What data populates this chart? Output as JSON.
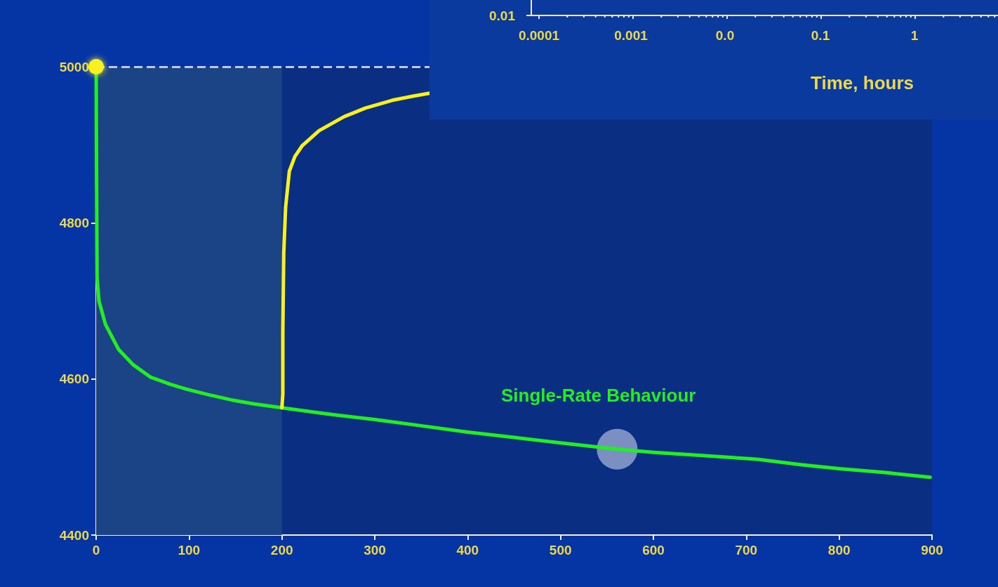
{
  "chart_data": [
    {
      "type": "line",
      "marker": "none",
      "xlim": [
        0,
        900
      ],
      "xticks": [
        0,
        100,
        200,
        300,
        400,
        500,
        600,
        700,
        800,
        900
      ],
      "ylim": [
        4400,
        5000
      ],
      "yticks": [
        4400,
        4600,
        4800,
        5000
      ],
      "series": [
        {
          "color": "#22ee22",
          "x": [
            0,
            0.5,
            1,
            3,
            10,
            24,
            40,
            59,
            80,
            97,
            120,
            146,
            170,
            200,
            250,
            300,
            350,
            399,
            450,
            500,
            561,
            600,
            650,
            713,
            760,
            800,
            850,
            898
          ],
          "values": [
            5000,
            4850,
            4730,
            4700,
            4670,
            4638,
            4618,
            4602,
            4593,
            4587,
            4580,
            4573,
            4568,
            4563,
            4555,
            4548,
            4540,
            4532,
            4525,
            4518,
            4510,
            4506,
            4502,
            4497,
            4490,
            4485,
            4480,
            4474
          ]
        },
        {
          "color": "#f8f020",
          "x": [
            200,
            201,
            201,
            202,
            204,
            208,
            214,
            222,
            240,
            267,
            290,
            319,
            340,
            359
          ],
          "values": [
            4563,
            4580,
            4659,
            4762,
            4820,
            4866,
            4885,
            4899,
            4918,
            4936,
            4947,
            4957,
            4962,
            4966
          ]
        },
        {
          "type": "scatter",
          "marker": "circle",
          "color": "#f8f020",
          "x": [
            0
          ],
          "values": [
            5000
          ]
        },
        {
          "type": "scatter",
          "marker": "circle",
          "color": "#c8d0ec",
          "x": [
            561
          ],
          "values": [
            4510
          ]
        }
      ],
      "ref_lines": [
        {
          "axis": "y",
          "value": 5000,
          "color": "#c0c8f0",
          "line_style": "dashed"
        }
      ],
      "bands": [
        {
          "axis": "x",
          "from": 0,
          "to": 200,
          "color": "#1b4486"
        }
      ],
      "annotations": [
        "Single-Rate Behaviour"
      ]
    },
    {
      "type": "other",
      "annotations": [
        "0.01",
        "0.0001",
        "0.001",
        "0.0",
        "0.1",
        "1",
        "Time, hours"
      ]
    }
  ]
}
